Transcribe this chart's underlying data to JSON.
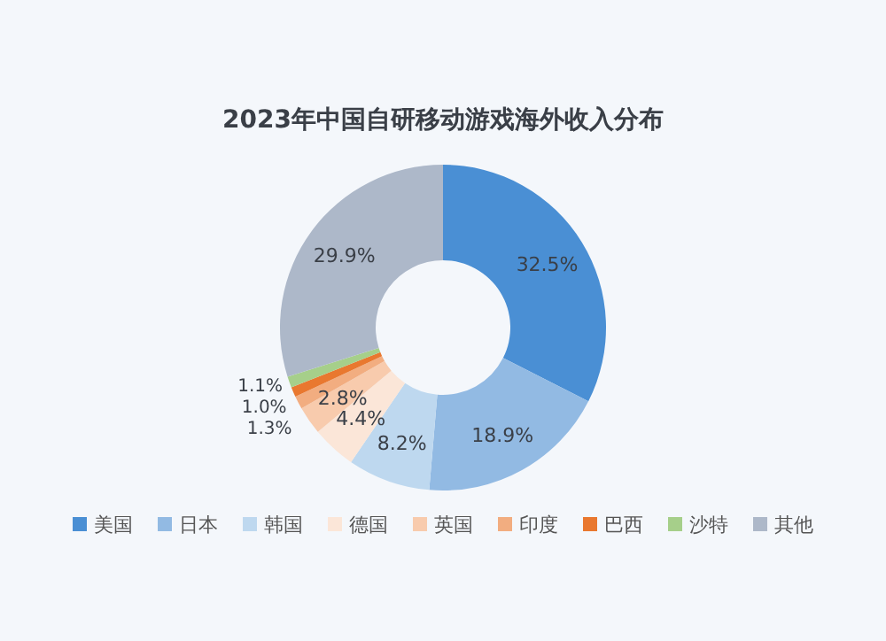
{
  "chart_data": {
    "type": "donut",
    "title": "2023年中国自研移动游戏海外收入分布",
    "categories": [
      "美国",
      "日本",
      "韩国",
      "德国",
      "英国",
      "印度",
      "巴西",
      "沙特",
      "其他"
    ],
    "values": [
      32.5,
      18.9,
      8.2,
      4.4,
      2.8,
      1.3,
      1.0,
      1.1,
      29.9
    ],
    "value_labels": [
      "32.5%",
      "18.9%",
      "8.2%",
      "4.4%",
      "2.8%",
      "1.3%",
      "1.0%",
      "1.1%",
      "29.9%"
    ],
    "colors": [
      "#4a8fd4",
      "#92bae3",
      "#bed8ef",
      "#fbe6d8",
      "#f8cbad",
      "#f2ad80",
      "#e9782f",
      "#a6cf8a",
      "#adb8c9"
    ],
    "legend": "bottom"
  }
}
